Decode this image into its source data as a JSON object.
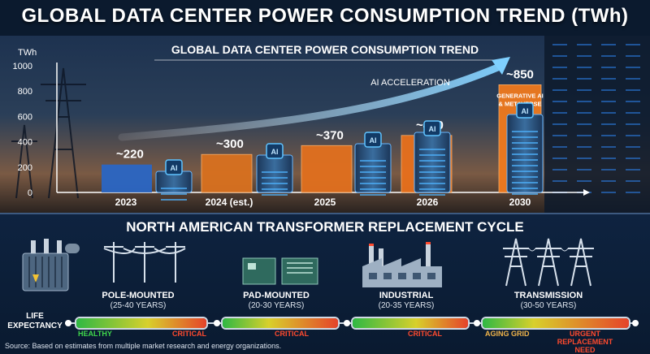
{
  "main_title": "GLOBAL DATA CENTER POWER CONSUMPTION TREND (TWh)",
  "chart_data": {
    "type": "bar",
    "title": "GLOBAL DATA CENTER POWER CONSUMPTION TREND",
    "ylabel": "TWh",
    "ylim": [
      0,
      1000
    ],
    "yticks": [
      0,
      200,
      400,
      600,
      800,
      1000
    ],
    "categories": [
      "2023",
      "2024 (est.)",
      "2025",
      "2026",
      "2030"
    ],
    "values": [
      220,
      300,
      370,
      450,
      850
    ],
    "value_labels": [
      "~220",
      "~300",
      "~370",
      "~450",
      "~850"
    ],
    "bar_colors": [
      "#2a66c4",
      "#d9711f",
      "#e2701e",
      "#e8701c",
      "#f07a1e"
    ],
    "chip_label": "AI",
    "annotation_arrow": "AI ACCELERATION",
    "annotation_box": "GENERATIVE AI & METAVERSE"
  },
  "transformer_section": {
    "title": "NORTH AMERICAN TRANSFORMER REPLACEMENT CYCLE",
    "life_label": "LIFE EXPECTANCY",
    "categories": [
      {
        "name": "POLE-MOUNTED",
        "years": "(25-40 YEARS)",
        "labels": [
          "HEALTHY",
          "CRITICAL"
        ]
      },
      {
        "name": "PAD-MOUNTED",
        "years": "(20-30 YEARS)",
        "labels": [
          "CRITICAL"
        ]
      },
      {
        "name": "INDUSTRIAL",
        "years": "(20-35 YEARS)",
        "labels": [
          "CRITICAL"
        ]
      },
      {
        "name": "TRANSMISSION",
        "years": "(30-50 YEARS)",
        "labels": [
          "AGING GRID",
          "URGENT REPLACEMENT NEED"
        ]
      }
    ]
  },
  "source": "Source: Based on estimates from multiple market research and energy organizations.",
  "colors": {
    "healthy": "#3fd64b",
    "critical": "#ff4a2e",
    "aging": "#f0b44a",
    "accent_blue": "#2f8cff"
  }
}
